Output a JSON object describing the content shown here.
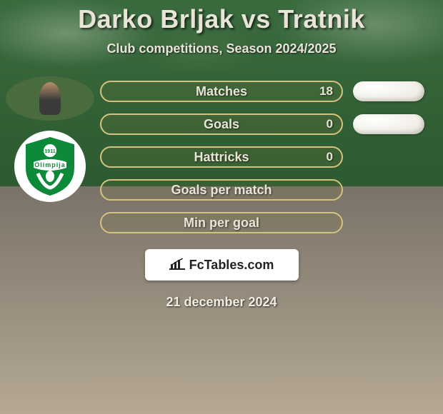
{
  "title": "Darko Brljak vs Tratnik",
  "subtitle": "Club competitions, Season 2024/2025",
  "date": "21 december 2024",
  "branding": {
    "text": "FcTables.com"
  },
  "club": {
    "name": "Olimpija",
    "year": "1911",
    "badge_color": "#0c8a3a",
    "badge_text_color": "#ffffff"
  },
  "colors": {
    "title_color": "#e8e4d8",
    "stat_text_color": "#e8e4d8",
    "pill_color": "#ffffff"
  },
  "stats": [
    {
      "label": "Matches",
      "value": "18",
      "border": "#d4c380",
      "bg": "rgba(120,120,60,0.18)",
      "show_value": true,
      "show_pill": true
    },
    {
      "label": "Goals",
      "value": "0",
      "border": "#d4c380",
      "bg": "rgba(120,120,60,0.18)",
      "show_value": true,
      "show_pill": true
    },
    {
      "label": "Hattricks",
      "value": "0",
      "border": "#d4c380",
      "bg": "rgba(120,120,60,0.18)",
      "show_value": true,
      "show_pill": false
    },
    {
      "label": "Goals per match",
      "value": "",
      "border": "#d4c380",
      "bg": "rgba(120,120,60,0.18)",
      "show_value": false,
      "show_pill": false
    },
    {
      "label": "Min per goal",
      "value": "",
      "border": "#d4c380",
      "bg": "rgba(120,120,60,0.18)",
      "show_value": false,
      "show_pill": false
    }
  ]
}
